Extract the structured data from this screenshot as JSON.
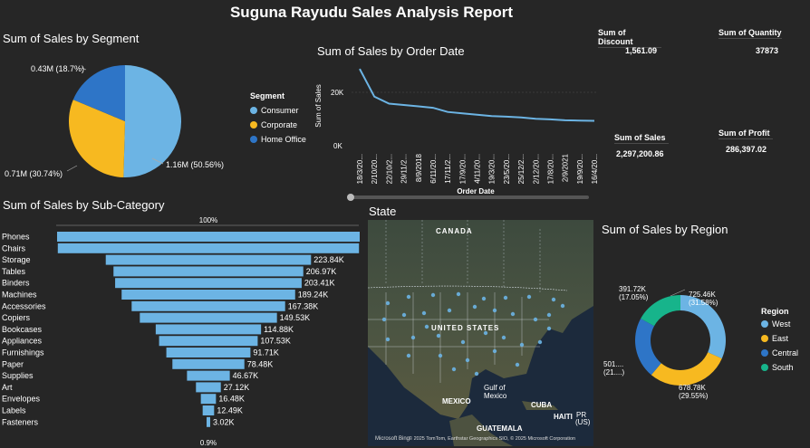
{
  "report": {
    "title": "Suguna Rayudu Sales Analysis Report"
  },
  "colors": {
    "background": "#262626",
    "blue": "#6CB4E4",
    "gold": "#F7B920",
    "navy": "#2E75C7",
    "teal": "#17B48B"
  },
  "cards": {
    "discount": {
      "label": "Sum of Discount",
      "value": "1,561.09"
    },
    "quantity": {
      "label": "Sum of Quantity",
      "value": "37873"
    },
    "sales": {
      "label": "Sum of Sales",
      "value": "2,297,200.86"
    },
    "profit": {
      "label": "Sum of Profit",
      "value": "286,397.02"
    }
  },
  "segment_chart": {
    "title": "Sum of Sales by Segment",
    "legend_title": "Segment",
    "slice_labels": [
      "1.16M (50.56%)",
      "0.71M (30.74%)",
      "0.43M (18.7%)"
    ]
  },
  "order_date_chart": {
    "title": "Sum of Sales by Order Date",
    "ylabel": "Sum of Sales",
    "xlabel": "Order Date"
  },
  "subcategory_chart": {
    "title": "Sum of Sales by Sub-Category",
    "top_label": "100%",
    "bottom_label": "0.9%"
  },
  "map": {
    "title": "State",
    "labels": {
      "canada": "CANADA",
      "us": "UNITED STATES",
      "gulf": "Gulf of\nMexico",
      "mexico": "MEXICO",
      "cuba": "CUBA",
      "haiti": "HAITI",
      "pr": "PR\n(US)",
      "guatemala": "GUATEMALA",
      "credit": "© 2025 TomTom, Earthstar Geographics SIO, © 2025 Microsoft Corporation",
      "bing": "Microsoft Bing"
    }
  },
  "region_chart": {
    "title": "Sum of Sales by Region",
    "legend_title": "Region",
    "labels": {
      "west": "725.46K\n(31.58%)",
      "east": "678.78K\n(29.55%)",
      "central": "501....\n(21....)",
      "south": "391.72K\n(17.05%)"
    }
  },
  "chart_data": [
    {
      "type": "pie",
      "title": "Sum of Sales by Segment",
      "categories": [
        "Consumer",
        "Corporate",
        "Home Office"
      ],
      "values": [
        1.16,
        0.71,
        0.43
      ],
      "percentages": [
        50.56,
        30.74,
        18.7
      ],
      "unit": "M",
      "colors": [
        "#6CB4E4",
        "#F7B920",
        "#2E75C7"
      ],
      "legend": "right"
    },
    {
      "type": "line",
      "title": "Sum of Sales by Order Date",
      "xlabel": "Order Date",
      "ylabel": "Sum of Sales",
      "x": [
        "18/3/20...",
        "2/10/20...",
        "22/10/2...",
        "29/11/2...",
        "8/9/2018",
        "6/11/20...",
        "17/11/2...",
        "17/9/20...",
        "4/11/20...",
        "19/3/20...",
        "23/5/20...",
        "25/12/2...",
        "2/12/20...",
        "17/8/20...",
        "2/9/2021",
        "19/9/20...",
        "16/4/20..."
      ],
      "values": [
        28000,
        18000,
        15500,
        15000,
        14500,
        14000,
        12500,
        12000,
        11500,
        11000,
        10800,
        10500,
        10000,
        9800,
        9500,
        9400,
        9300
      ],
      "yticks": [
        "0K",
        "20K"
      ],
      "ylim": [
        0,
        30000
      ],
      "color": "#6CB4E4"
    },
    {
      "type": "bar",
      "title": "Sum of Sales by Sub-Category",
      "categories": [
        "Phones",
        "Chairs",
        "Storage",
        "Tables",
        "Binders",
        "Machines",
        "Accessories",
        "Copiers",
        "Bookcases",
        "Appliances",
        "Furnishings",
        "Paper",
        "Supplies",
        "Art",
        "Envelopes",
        "Labels",
        "Fasteners"
      ],
      "values": [
        330.01,
        328.45,
        223.84,
        206.97,
        203.41,
        189.24,
        167.38,
        149.53,
        114.88,
        107.53,
        91.71,
        78.48,
        46.67,
        27.12,
        16.48,
        12.49,
        3.02
      ],
      "data_labels": [
        "",
        "",
        "223.84K",
        "206.97K",
        "203.41K",
        "189.24K",
        "167.38K",
        "149.53K",
        "114.88K",
        "107.53K",
        "91.71K",
        "78.48K",
        "46.67K",
        "27.12K",
        "16.48K",
        "12.49K",
        "3.02K"
      ],
      "unit": "K",
      "color": "#6CB4E4"
    },
    {
      "type": "pie",
      "title": "Sum of Sales by Region",
      "categories": [
        "West",
        "East",
        "Central",
        "South"
      ],
      "values": [
        725.46,
        678.78,
        501.24,
        391.72
      ],
      "percentages": [
        31.58,
        29.55,
        21.82,
        17.05
      ],
      "unit": "K",
      "colors": [
        "#6CB4E4",
        "#F7B920",
        "#2E75C7",
        "#17B48B"
      ],
      "legend": "right"
    }
  ]
}
